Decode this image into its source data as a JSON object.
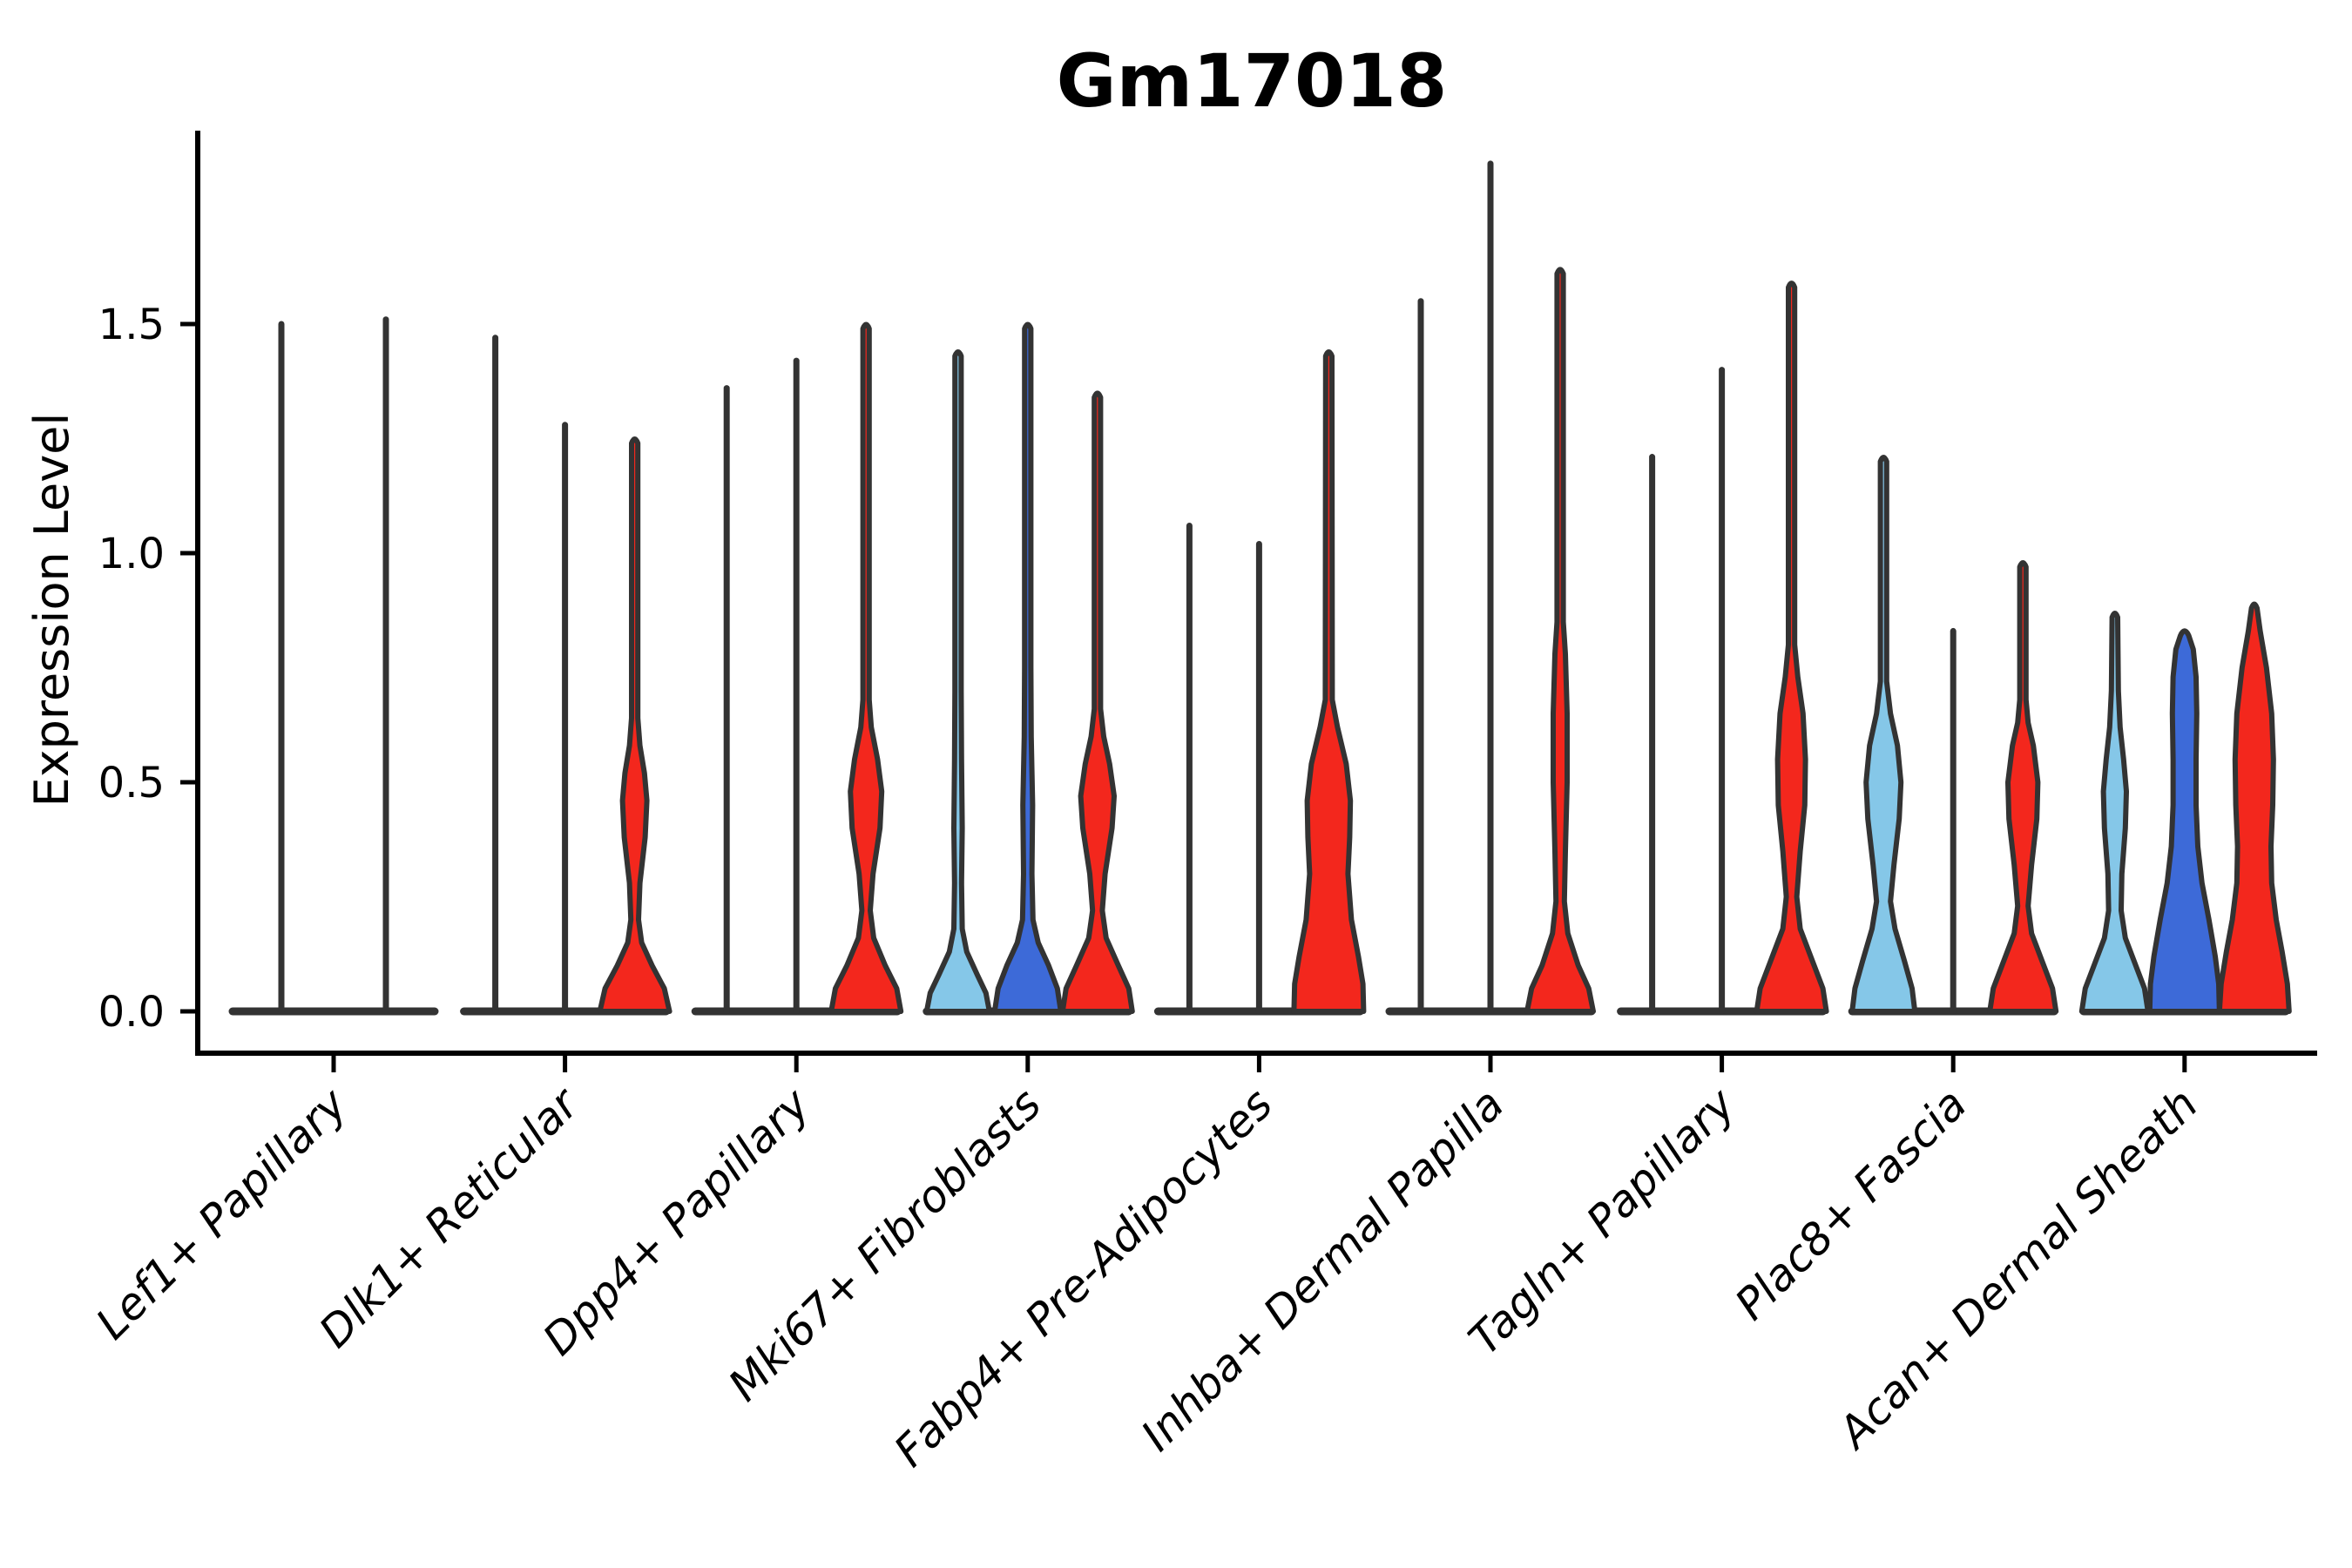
{
  "figure": {
    "title": "Gm17018"
  },
  "chart_data": {
    "type": "violin",
    "title": "Gm17018",
    "xlabel": "",
    "ylabel": "Expression Level",
    "ytick_labels": [
      "0.0",
      "0.5",
      "1.0",
      "1.5"
    ],
    "ytick_values": [
      0.0,
      0.5,
      1.0,
      1.5
    ],
    "ylim": [
      -0.09,
      1.92
    ],
    "grid": "off",
    "legend": "none",
    "colors": {
      "split_lightblue": "#85C7E8",
      "split_darkblue": "#3D6AD8",
      "split_red": "#F3271D",
      "outline": "#333333",
      "axis": "#000000"
    },
    "categories": [
      "Lef1+ Papillary",
      "Dlk1+ Reticular",
      "Dpp4+ Papillary",
      "Mki67+ Fibroblasts",
      "Fabp4+ Pre-Adipocytes",
      "Inhba+ Dermal Papilla",
      "Tagln+ Papillary",
      "Plac8+ Fascia",
      "Acan+ Dermal Sheath"
    ],
    "groups": [
      {
        "label": "Lef1+ Papillary",
        "violins": [
          {
            "type": "line",
            "color": "#333333",
            "max": 1.5
          },
          {
            "type": "line",
            "color": "#333333",
            "max": 1.51
          }
        ]
      },
      {
        "label": "Dlk1+ Reticular",
        "violins": [
          {
            "type": "line",
            "color": "#333333",
            "max": 1.47
          },
          {
            "type": "line",
            "color": "#333333",
            "max": 1.28
          },
          {
            "type": "body",
            "color": "#F3271D",
            "max": 1.24,
            "profile": [
              [
                0,
                1
              ],
              [
                0.05,
                0.85
              ],
              [
                0.1,
                0.5
              ],
              [
                0.15,
                0.2
              ],
              [
                0.2,
                0.11
              ],
              [
                0.28,
                0.15
              ],
              [
                0.38,
                0.3
              ],
              [
                0.46,
                0.35
              ],
              [
                0.52,
                0.28
              ],
              [
                0.58,
                0.15
              ],
              [
                0.64,
                0.09
              ],
              [
                1.24,
                0.09
              ]
            ]
          }
        ]
      },
      {
        "label": "Dpp4+ Papillary",
        "violins": [
          {
            "type": "line",
            "color": "#333333",
            "max": 1.36
          },
          {
            "type": "line",
            "color": "#333333",
            "max": 1.42
          },
          {
            "type": "body",
            "color": "#F3271D",
            "max": 1.49,
            "profile": [
              [
                0,
                1
              ],
              [
                0.05,
                0.88
              ],
              [
                0.1,
                0.55
              ],
              [
                0.16,
                0.22
              ],
              [
                0.22,
                0.12
              ],
              [
                0.3,
                0.2
              ],
              [
                0.4,
                0.4
              ],
              [
                0.48,
                0.45
              ],
              [
                0.55,
                0.33
              ],
              [
                0.62,
                0.15
              ],
              [
                0.68,
                0.09
              ],
              [
                1.49,
                0.09
              ]
            ]
          }
        ]
      },
      {
        "label": "Mki67+ Fibroblasts",
        "violins": [
          {
            "type": "body",
            "color": "#85C7E8",
            "max": 1.43,
            "profile": [
              [
                0,
                0.9
              ],
              [
                0.04,
                0.8
              ],
              [
                0.08,
                0.55
              ],
              [
                0.13,
                0.25
              ],
              [
                0.18,
                0.12
              ],
              [
                0.28,
                0.1
              ],
              [
                0.4,
                0.12
              ],
              [
                0.55,
                0.1
              ],
              [
                0.7,
                0.09
              ],
              [
                1.43,
                0.09
              ]
            ]
          },
          {
            "type": "body",
            "color": "#3D6AD8",
            "max": 1.49,
            "profile": [
              [
                0,
                0.95
              ],
              [
                0.05,
                0.85
              ],
              [
                0.1,
                0.6
              ],
              [
                0.15,
                0.3
              ],
              [
                0.2,
                0.15
              ],
              [
                0.3,
                0.12
              ],
              [
                0.45,
                0.14
              ],
              [
                0.6,
                0.1
              ],
              [
                0.75,
                0.09
              ],
              [
                1.49,
                0.09
              ]
            ]
          },
          {
            "type": "body",
            "color": "#F3271D",
            "max": 1.34,
            "profile": [
              [
                0,
                1
              ],
              [
                0.05,
                0.9
              ],
              [
                0.1,
                0.6
              ],
              [
                0.16,
                0.25
              ],
              [
                0.22,
                0.14
              ],
              [
                0.3,
                0.22
              ],
              [
                0.4,
                0.42
              ],
              [
                0.47,
                0.48
              ],
              [
                0.54,
                0.35
              ],
              [
                0.6,
                0.18
              ],
              [
                0.66,
                0.09
              ],
              [
                1.34,
                0.09
              ]
            ]
          }
        ]
      },
      {
        "label": "Fabp4+ Pre-Adipocytes",
        "violins": [
          {
            "type": "line",
            "color": "#333333",
            "max": 1.06
          },
          {
            "type": "line",
            "color": "#333333",
            "max": 1.02
          },
          {
            "type": "body",
            "color": "#F3271D",
            "max": 1.43,
            "profile": [
              [
                0,
                1
              ],
              [
                0.06,
                0.98
              ],
              [
                0.12,
                0.85
              ],
              [
                0.2,
                0.65
              ],
              [
                0.3,
                0.55
              ],
              [
                0.38,
                0.6
              ],
              [
                0.46,
                0.62
              ],
              [
                0.54,
                0.5
              ],
              [
                0.62,
                0.25
              ],
              [
                0.68,
                0.1
              ],
              [
                1.43,
                0.09
              ]
            ]
          }
        ]
      },
      {
        "label": "Inhba+ Dermal Papilla",
        "violins": [
          {
            "type": "line",
            "color": "#333333",
            "max": 1.55
          },
          {
            "type": "line",
            "color": "#333333",
            "max": 1.85
          },
          {
            "type": "body",
            "color": "#F3271D",
            "max": 1.61,
            "profile": [
              [
                0,
                0.95
              ],
              [
                0.05,
                0.82
              ],
              [
                0.1,
                0.52
              ],
              [
                0.17,
                0.22
              ],
              [
                0.24,
                0.12
              ],
              [
                0.35,
                0.15
              ],
              [
                0.5,
                0.2
              ],
              [
                0.65,
                0.2
              ],
              [
                0.78,
                0.15
              ],
              [
                0.85,
                0.09
              ],
              [
                1.61,
                0.09
              ]
            ]
          }
        ]
      },
      {
        "label": "Tagln+ Papillary",
        "violins": [
          {
            "type": "line",
            "color": "#333333",
            "max": 1.21
          },
          {
            "type": "line",
            "color": "#333333",
            "max": 1.4
          },
          {
            "type": "body",
            "color": "#F3271D",
            "max": 1.58,
            "profile": [
              [
                0,
                1
              ],
              [
                0.05,
                0.9
              ],
              [
                0.11,
                0.6
              ],
              [
                0.18,
                0.25
              ],
              [
                0.25,
                0.15
              ],
              [
                0.35,
                0.25
              ],
              [
                0.45,
                0.38
              ],
              [
                0.55,
                0.4
              ],
              [
                0.65,
                0.33
              ],
              [
                0.73,
                0.18
              ],
              [
                0.8,
                0.09
              ],
              [
                1.58,
                0.09
              ]
            ]
          }
        ]
      },
      {
        "label": "Plac8+ Fascia",
        "violins": [
          {
            "type": "body",
            "color": "#85C7E8",
            "max": 1.2,
            "profile": [
              [
                0,
                0.9
              ],
              [
                0.05,
                0.82
              ],
              [
                0.11,
                0.6
              ],
              [
                0.18,
                0.33
              ],
              [
                0.24,
                0.2
              ],
              [
                0.32,
                0.3
              ],
              [
                0.42,
                0.45
              ],
              [
                0.5,
                0.5
              ],
              [
                0.58,
                0.4
              ],
              [
                0.65,
                0.2
              ],
              [
                0.72,
                0.09
              ],
              [
                1.2,
                0.09
              ]
            ]
          },
          {
            "type": "line",
            "color": "#333333",
            "max": 0.83
          },
          {
            "type": "body",
            "color": "#F3271D",
            "max": 0.97,
            "profile": [
              [
                0,
                0.95
              ],
              [
                0.05,
                0.85
              ],
              [
                0.11,
                0.55
              ],
              [
                0.17,
                0.25
              ],
              [
                0.23,
                0.15
              ],
              [
                0.32,
                0.25
              ],
              [
                0.42,
                0.4
              ],
              [
                0.5,
                0.43
              ],
              [
                0.58,
                0.3
              ],
              [
                0.63,
                0.15
              ],
              [
                0.68,
                0.09
              ],
              [
                0.97,
                0.09
              ]
            ]
          }
        ]
      },
      {
        "label": "Acan+ Dermal Sheath",
        "violins": [
          {
            "type": "body",
            "color": "#85C7E8",
            "max": 0.86,
            "profile": [
              [
                0,
                0.95
              ],
              [
                0.05,
                0.85
              ],
              [
                0.1,
                0.6
              ],
              [
                0.16,
                0.3
              ],
              [
                0.22,
                0.18
              ],
              [
                0.3,
                0.2
              ],
              [
                0.4,
                0.3
              ],
              [
                0.48,
                0.33
              ],
              [
                0.55,
                0.25
              ],
              [
                0.62,
                0.15
              ],
              [
                0.7,
                0.1
              ],
              [
                0.86,
                0.08
              ]
            ]
          },
          {
            "type": "body",
            "color": "#3D6AD8",
            "max": 0.82,
            "profile": [
              [
                0,
                1
              ],
              [
                0.06,
                0.98
              ],
              [
                0.12,
                0.88
              ],
              [
                0.2,
                0.7
              ],
              [
                0.28,
                0.5
              ],
              [
                0.36,
                0.38
              ],
              [
                0.45,
                0.33
              ],
              [
                0.55,
                0.33
              ],
              [
                0.65,
                0.35
              ],
              [
                0.73,
                0.33
              ],
              [
                0.79,
                0.25
              ],
              [
                0.82,
                0.12
              ]
            ]
          },
          {
            "type": "body",
            "color": "#F3271D",
            "max": 0.88,
            "profile": [
              [
                0,
                1
              ],
              [
                0.06,
                0.95
              ],
              [
                0.13,
                0.8
              ],
              [
                0.2,
                0.63
              ],
              [
                0.28,
                0.5
              ],
              [
                0.36,
                0.48
              ],
              [
                0.45,
                0.53
              ],
              [
                0.55,
                0.55
              ],
              [
                0.65,
                0.5
              ],
              [
                0.75,
                0.35
              ],
              [
                0.83,
                0.17
              ],
              [
                0.88,
                0.08
              ]
            ]
          }
        ]
      }
    ]
  }
}
